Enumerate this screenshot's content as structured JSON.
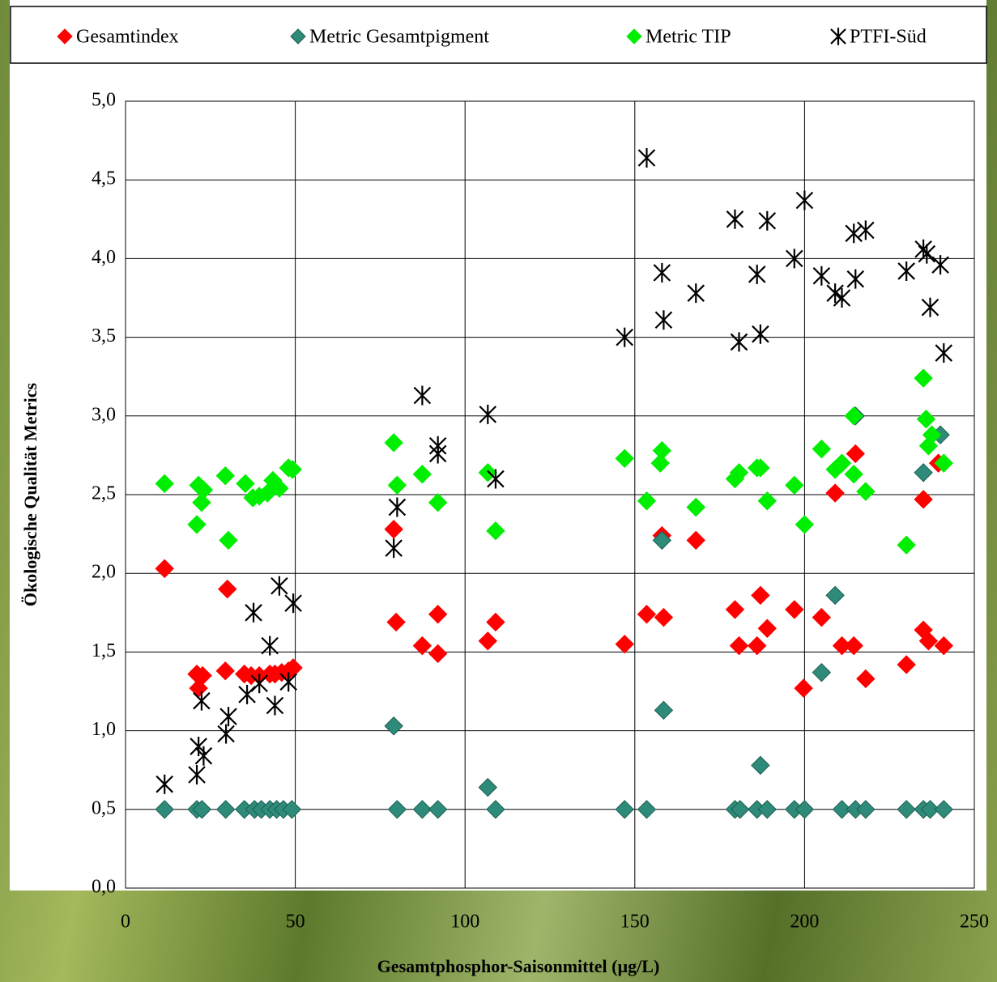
{
  "chart_data": {
    "type": "scatter",
    "xlabel": "Gesamtphosphor-Saisonmittel (µg/L)",
    "ylabel": "Ökologische Qualität Metrics",
    "xlim": [
      0,
      250
    ],
    "xticks": [
      0,
      50,
      100,
      150,
      200,
      250
    ],
    "ylim": [
      0,
      5
    ],
    "yticks": [
      {
        "value": 0,
        "label": "0,0"
      },
      {
        "value": 0.5,
        "label": "0,5"
      },
      {
        "value": 1,
        "label": "1,0"
      },
      {
        "value": 1.5,
        "label": "1,5"
      },
      {
        "value": 2,
        "label": "2,0"
      },
      {
        "value": 2.5,
        "label": "2,5"
      },
      {
        "value": 3,
        "label": "3,0"
      },
      {
        "value": 3.5,
        "label": "3,5"
      },
      {
        "value": 4,
        "label": "4,0"
      },
      {
        "value": 4.5,
        "label": "4,5"
      },
      {
        "value": 5,
        "label": "5,0"
      }
    ],
    "grid": true,
    "legend": "top",
    "series": [
      {
        "name": "Gesamtindex",
        "color": "#ff0000",
        "marker": "diamond",
        "x": [
          11.5,
          21,
          21.5,
          22.7,
          30,
          29.4,
          35,
          37,
          39.4,
          42.5,
          44,
          46,
          48,
          49.4,
          79,
          79.7,
          87.4,
          92,
          92,
          106.7,
          109,
          147,
          153.5,
          158,
          158.5,
          168,
          179.5,
          180.7,
          186,
          187,
          189,
          197,
          199.7,
          205,
          209,
          211,
          214.5,
          215,
          218,
          230,
          235,
          235,
          236.5,
          239.4,
          241
        ],
        "values": [
          2.03,
          1.36,
          1.27,
          1.35,
          1.9,
          1.38,
          1.36,
          1.35,
          1.35,
          1.36,
          1.36,
          1.37,
          1.38,
          1.4,
          2.28,
          1.69,
          1.54,
          1.74,
          1.49,
          1.57,
          1.69,
          1.55,
          1.74,
          2.24,
          1.72,
          2.21,
          1.77,
          1.54,
          1.54,
          1.86,
          1.65,
          1.77,
          1.27,
          1.72,
          2.51,
          1.54,
          1.54,
          2.76,
          1.33,
          1.42,
          2.47,
          1.64,
          1.57,
          2.7,
          1.54
        ]
      },
      {
        "name": "Metric Gesamtpigment",
        "color": "#2e8b7a",
        "marker": "diamond",
        "x": [
          11.5,
          21,
          22.5,
          29.5,
          35,
          38,
          40,
          42.5,
          44.5,
          46.5,
          49,
          80,
          87.4,
          92,
          109,
          147,
          153.5,
          179.5,
          181,
          186,
          189,
          197,
          200,
          211,
          215,
          218,
          230,
          235,
          237,
          241,
          79,
          106.7,
          158,
          158.5,
          168,
          187,
          205,
          209,
          215,
          235,
          240
        ],
        "values": [
          0.5,
          0.5,
          0.5,
          0.5,
          0.5,
          0.5,
          0.5,
          0.5,
          0.5,
          0.5,
          0.5,
          0.5,
          0.5,
          0.5,
          0.5,
          0.5,
          0.5,
          0.5,
          0.5,
          0.5,
          0.5,
          0.5,
          0.5,
          0.5,
          0.5,
          0.5,
          0.5,
          0.5,
          0.5,
          0.5,
          1.03,
          0.64,
          2.21,
          1.13,
          2.42,
          0.78,
          1.37,
          1.86,
          3.0,
          2.64,
          2.88
        ]
      },
      {
        "name": "Metric TIP",
        "color": "#00ee00",
        "marker": "diamond",
        "x": [
          11.5,
          21,
          21.5,
          22.4,
          23,
          29.4,
          30.3,
          35.3,
          37.5,
          39.4,
          41.8,
          43.4,
          45.3,
          48,
          49.2,
          79,
          80,
          87.4,
          92,
          106.7,
          109,
          147,
          153.5,
          158,
          157.5,
          168,
          179.5,
          180.7,
          186,
          187,
          189,
          197,
          200,
          205,
          209,
          211,
          214.5,
          214.5,
          218,
          230,
          235,
          235.8,
          236.5,
          237.5,
          241
        ],
        "values": [
          2.57,
          2.31,
          2.56,
          2.45,
          2.53,
          2.62,
          2.21,
          2.57,
          2.48,
          2.49,
          2.51,
          2.59,
          2.54,
          2.67,
          2.66,
          2.83,
          2.56,
          2.63,
          2.45,
          2.64,
          2.27,
          2.73,
          2.46,
          2.78,
          2.7,
          2.42,
          2.6,
          2.64,
          2.67,
          2.67,
          2.46,
          2.56,
          2.31,
          2.79,
          2.66,
          2.7,
          3.0,
          2.63,
          2.52,
          2.18,
          3.24,
          2.98,
          2.81,
          2.88,
          2.7
        ]
      },
      {
        "name": "PTFI-Süd",
        "color": "#000000",
        "marker": "asterisk",
        "x": [
          11.5,
          21,
          21.5,
          22.4,
          23,
          29.6,
          30.3,
          35.8,
          37.7,
          39.4,
          42.5,
          44,
          45.3,
          48,
          49.4,
          79,
          80,
          87.4,
          92,
          92,
          106.7,
          109,
          147,
          153.5,
          158,
          158.5,
          168,
          179.5,
          180.7,
          186,
          187,
          189,
          197,
          200,
          205,
          209,
          211,
          214.5,
          215,
          218,
          230,
          235,
          236,
          237,
          240,
          241
        ],
        "values": [
          0.66,
          0.72,
          0.9,
          1.19,
          0.84,
          0.98,
          1.09,
          1.23,
          1.75,
          1.3,
          1.54,
          1.16,
          1.92,
          1.31,
          1.81,
          2.16,
          2.42,
          3.13,
          2.81,
          2.76,
          3.01,
          2.6,
          3.5,
          4.64,
          3.91,
          3.61,
          3.78,
          4.25,
          3.47,
          3.9,
          3.52,
          4.24,
          4.0,
          4.37,
          3.89,
          3.78,
          3.75,
          4.16,
          3.87,
          4.18,
          3.92,
          4.06,
          4.03,
          3.69,
          3.96,
          3.4
        ]
      }
    ]
  }
}
